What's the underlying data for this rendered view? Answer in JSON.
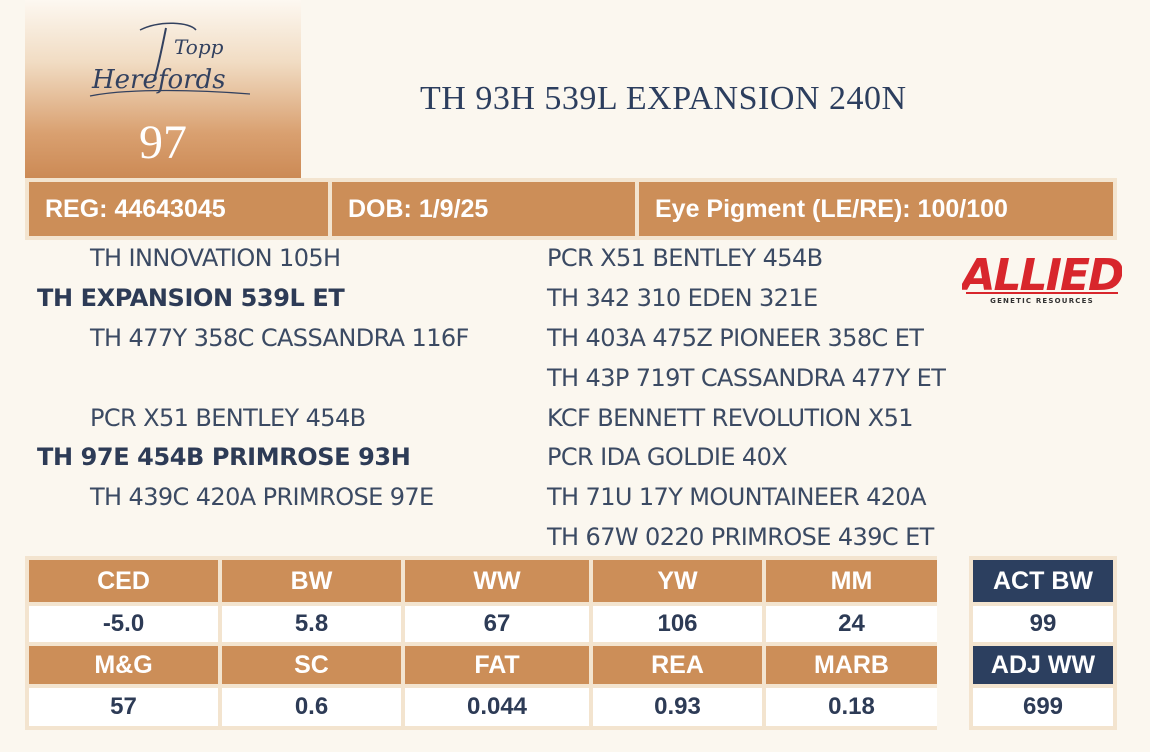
{
  "logo": {
    "text_line1": "Topp",
    "text_line2": "Herefords"
  },
  "lot_number": "97",
  "animal_name": "TH 93H 539L EXPANSION 240N",
  "info": {
    "reg": "REG: 44643045",
    "dob": "DOB: 1/9/25",
    "eye_pigment": "Eye Pigment (LE/RE): 100/100"
  },
  "pedigree": {
    "sire_sire": "TH INNOVATION 105H",
    "sire": "TH EXPANSION 539L ET",
    "sire_dam": "TH 477Y 358C CASSANDRA 116F",
    "dam_sire": "PCR X51 BENTLEY 454B",
    "dam": "TH 97E 454B PRIMROSE 93H",
    "dam_dam": "TH 439C 420A PRIMROSE 97E",
    "right": [
      "PCR X51 BENTLEY 454B",
      "TH 342 310 EDEN 321E",
      "TH 403A 475Z PIONEER 358C ET",
      "TH 43P 719T CASSANDRA 477Y ET",
      "KCF BENNETT REVOLUTION X51",
      "PCR IDA GOLDIE 40X",
      "TH 71U 17Y MOUNTAINEER 420A",
      "TH 67W 0220 PRIMROSE 439C ET"
    ]
  },
  "allied_logo": {
    "name": "ALLIED",
    "tagline": "GENETIC RESOURCES",
    "color": "#d8262c"
  },
  "epds": {
    "row1": {
      "headers": [
        "CED",
        "BW",
        "WW",
        "YW",
        "MM"
      ],
      "values": [
        "-5.0",
        "5.8",
        "67",
        "106",
        "24"
      ]
    },
    "row2": {
      "headers": [
        "M&G",
        "SC",
        "FAT",
        "REA",
        "MARB"
      ],
      "values": [
        "57",
        "0.6",
        "0.044",
        "0.93",
        "0.18"
      ]
    }
  },
  "actuals": {
    "act_bw_label": "ACT BW",
    "act_bw": "99",
    "adj_ww_label": "ADJ WW",
    "adj_ww": "699"
  },
  "colors": {
    "accent": "#cc8e58",
    "navy": "#2c3f5f",
    "border": "#f3e4cf"
  }
}
